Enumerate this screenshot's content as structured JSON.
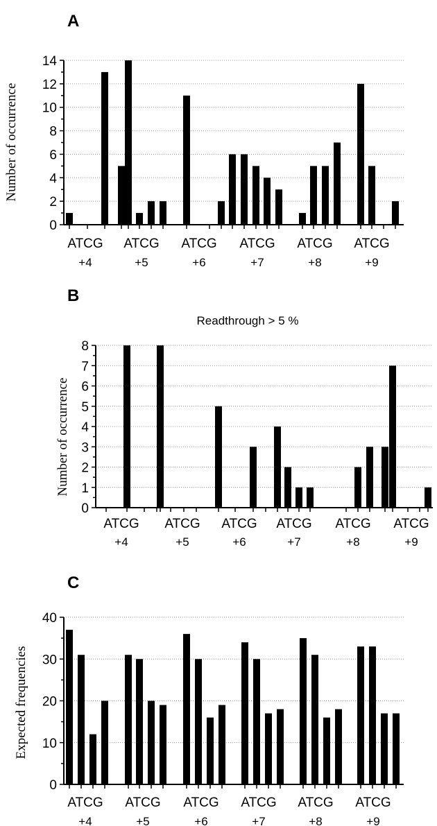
{
  "chart_data": [
    {
      "panel": "A",
      "type": "bar",
      "title": "",
      "xlabel": "",
      "ylabel": "Number of occurrence",
      "ylim": [
        0,
        14
      ],
      "yticks": [
        0,
        2,
        4,
        6,
        8,
        10,
        12,
        14
      ],
      "grid": true,
      "positions": [
        "+4",
        "+5",
        "+6",
        "+7",
        "+8",
        "+9"
      ],
      "bases": [
        "A",
        "T",
        "C",
        "G"
      ],
      "values": [
        [
          1,
          0,
          13,
          5
        ],
        [
          14,
          1,
          2,
          2
        ],
        [
          11,
          0,
          2,
          6
        ],
        [
          6,
          5,
          4,
          3
        ],
        [
          1,
          5,
          5,
          7
        ],
        [
          12,
          5,
          0,
          2
        ]
      ]
    },
    {
      "panel": "B",
      "type": "bar",
      "title": "Readthrough > 5 %",
      "xlabel": "",
      "ylabel": "Number of occurrence",
      "ylim": [
        0,
        8
      ],
      "yticks": [
        0,
        1,
        2,
        3,
        4,
        5,
        6,
        7,
        8
      ],
      "grid": true,
      "positions": [
        "+4",
        "+5",
        "+6",
        "+7",
        "+8",
        "+9"
      ],
      "bases": [
        "A",
        "T",
        "C",
        "G"
      ],
      "values": [
        [
          0,
          8,
          0,
          0
        ],
        [
          8,
          0,
          0,
          0
        ],
        [
          5,
          0,
          3,
          0
        ],
        [
          4,
          2,
          1,
          1
        ],
        [
          0,
          2,
          3,
          3
        ],
        [
          7,
          0,
          0,
          1
        ]
      ]
    },
    {
      "panel": "C",
      "type": "bar",
      "title": "",
      "xlabel": "",
      "ylabel": "Expected frequencies",
      "ylim": [
        0,
        40
      ],
      "yticks": [
        0,
        10,
        20,
        30,
        40
      ],
      "grid": true,
      "positions": [
        "+4",
        "+5",
        "+6",
        "+7",
        "+8",
        "+9"
      ],
      "bases": [
        "A",
        "T",
        "C",
        "G"
      ],
      "values": [
        [
          37,
          31,
          12,
          20
        ],
        [
          31,
          30,
          20,
          19
        ],
        [
          36,
          30,
          16,
          19
        ],
        [
          34,
          30,
          17,
          18
        ],
        [
          35,
          31,
          16,
          18
        ],
        [
          33,
          33,
          17,
          17
        ]
      ]
    }
  ]
}
